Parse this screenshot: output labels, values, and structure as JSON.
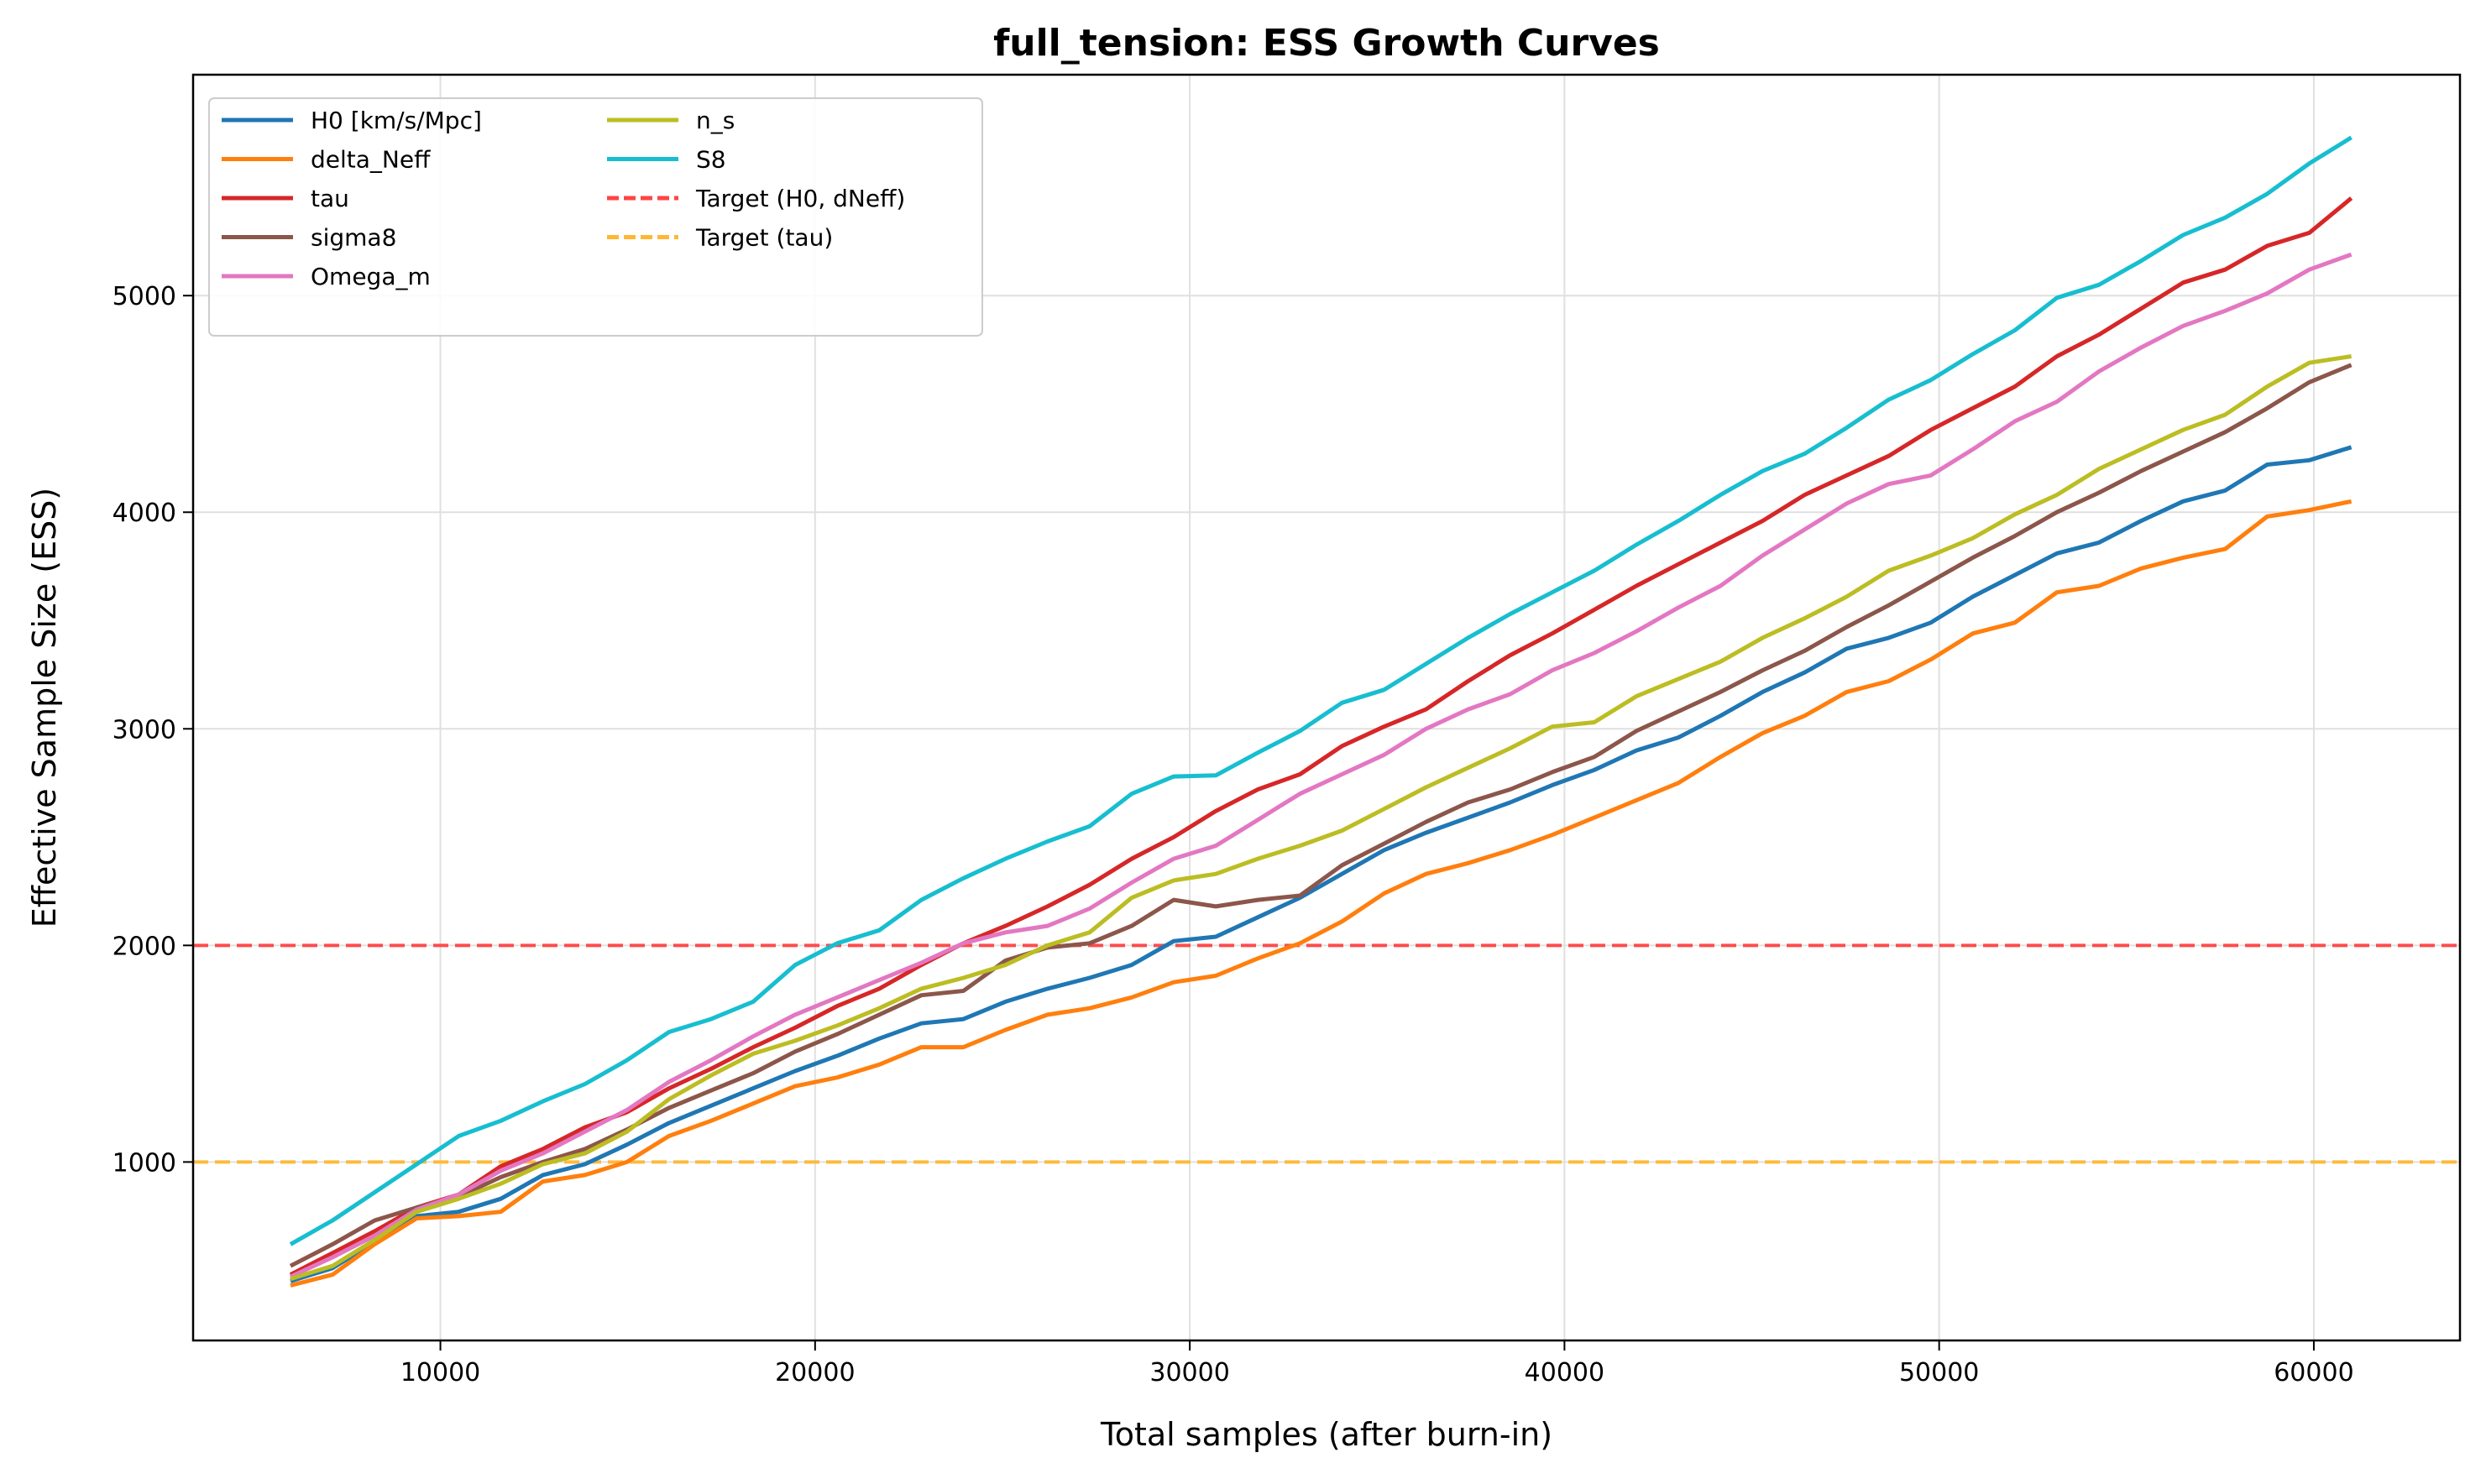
{
  "chart_data": {
    "type": "line",
    "title": "full_tension: ESS Growth Curves",
    "xlabel": "Total samples (after burn-in)",
    "ylabel": "Effective Sample Size (ESS)",
    "xlim": [
      3400,
      63900
    ],
    "ylim": [
      176,
      6020
    ],
    "xticks": [
      10000,
      20000,
      30000,
      40000,
      50000,
      60000
    ],
    "yticks": [
      1000,
      2000,
      3000,
      4000,
      5000
    ],
    "grid": true,
    "legend_placement": "top-left",
    "legend_columns": 2,
    "x": [
      6000,
      7122,
      8245,
      9367,
      10490,
      11612,
      12735,
      13857,
      14980,
      16102,
      17224,
      18347,
      19469,
      20592,
      21714,
      22837,
      23959,
      25082,
      26204,
      27327,
      28449,
      29571,
      30694,
      31816,
      32939,
      34061,
      35184,
      36306,
      37429,
      38551,
      39673,
      40796,
      41918,
      43041,
      44163,
      45286,
      46408,
      47531,
      48653,
      49776,
      50898,
      52020,
      53143,
      54265,
      55388,
      56510,
      57633,
      58755,
      59878,
      61000
    ],
    "series": [
      {
        "name": "H0 [km/s/Mpc]",
        "color": "#1f77b4",
        "values": [
          450,
          510,
          630,
          750,
          770,
          830,
          940,
          990,
          1080,
          1180,
          1260,
          1340,
          1420,
          1490,
          1570,
          1640,
          1660,
          1740,
          1800,
          1850,
          1910,
          2020,
          2040,
          2130,
          2220,
          2330,
          2440,
          2520,
          2590,
          2660,
          2740,
          2810,
          2900,
          2960,
          3060,
          3170,
          3260,
          3370,
          3420,
          3490,
          3610,
          3710,
          3810,
          3860,
          3960,
          4050,
          4100,
          4220,
          4240,
          4300
        ]
      },
      {
        "name": "delta_Neff",
        "color": "#ff7f0e",
        "values": [
          430,
          480,
          620,
          740,
          750,
          770,
          910,
          940,
          1000,
          1120,
          1190,
          1270,
          1350,
          1390,
          1450,
          1530,
          1530,
          1610,
          1680,
          1710,
          1760,
          1830,
          1860,
          1940,
          2010,
          2110,
          2240,
          2330,
          2380,
          2440,
          2510,
          2590,
          2670,
          2750,
          2870,
          2980,
          3060,
          3170,
          3220,
          3320,
          3440,
          3490,
          3630,
          3660,
          3740,
          3790,
          3830,
          3980,
          4010,
          4050
        ]
      },
      {
        "name": "tau",
        "color": "#d62728",
        "values": [
          480,
          580,
          680,
          790,
          850,
          980,
          1060,
          1160,
          1230,
          1340,
          1430,
          1530,
          1620,
          1720,
          1800,
          1910,
          2010,
          2090,
          2180,
          2280,
          2400,
          2500,
          2620,
          2720,
          2790,
          2920,
          3010,
          3090,
          3220,
          3340,
          3440,
          3550,
          3660,
          3760,
          3860,
          3960,
          4080,
          4170,
          4260,
          4380,
          4480,
          4580,
          4720,
          4820,
          4940,
          5060,
          5120,
          5230,
          5290,
          5450
        ]
      },
      {
        "name": "sigma8",
        "color": "#8c564b",
        "values": [
          520,
          620,
          730,
          790,
          840,
          930,
          1000,
          1060,
          1150,
          1250,
          1330,
          1410,
          1510,
          1590,
          1680,
          1770,
          1790,
          1930,
          1990,
          2010,
          2090,
          2210,
          2180,
          2210,
          2230,
          2370,
          2470,
          2570,
          2660,
          2720,
          2800,
          2870,
          2990,
          3080,
          3170,
          3270,
          3360,
          3470,
          3570,
          3680,
          3790,
          3890,
          4000,
          4090,
          4190,
          4280,
          4370,
          4480,
          4600,
          4680
        ]
      },
      {
        "name": "Omega_m",
        "color": "#e377c2",
        "values": [
          470,
          560,
          660,
          780,
          850,
          960,
          1040,
          1140,
          1240,
          1370,
          1470,
          1580,
          1680,
          1760,
          1840,
          1920,
          2010,
          2060,
          2090,
          2170,
          2290,
          2400,
          2460,
          2580,
          2700,
          2790,
          2880,
          3000,
          3090,
          3160,
          3270,
          3350,
          3450,
          3560,
          3660,
          3800,
          3920,
          4040,
          4130,
          4170,
          4290,
          4420,
          4510,
          4650,
          4760,
          4860,
          4930,
          5010,
          5120,
          5190
        ]
      },
      {
        "name": "n_s",
        "color": "#bcbd22",
        "values": [
          460,
          520,
          640,
          770,
          830,
          900,
          990,
          1040,
          1140,
          1290,
          1400,
          1500,
          1560,
          1630,
          1710,
          1800,
          1850,
          1910,
          2000,
          2060,
          2220,
          2300,
          2330,
          2400,
          2460,
          2530,
          2630,
          2730,
          2820,
          2910,
          3010,
          3030,
          3150,
          3230,
          3310,
          3420,
          3510,
          3610,
          3730,
          3800,
          3880,
          3990,
          4080,
          4200,
          4290,
          4380,
          4450,
          4580,
          4690,
          4720
        ]
      },
      {
        "name": "S8",
        "color": "#17becf",
        "values": [
          620,
          730,
          860,
          990,
          1120,
          1190,
          1280,
          1360,
          1470,
          1600,
          1660,
          1740,
          1910,
          2010,
          2070,
          2210,
          2310,
          2400,
          2480,
          2550,
          2700,
          2780,
          2785,
          2890,
          2990,
          3120,
          3180,
          3300,
          3420,
          3530,
          3630,
          3730,
          3850,
          3960,
          4080,
          4190,
          4270,
          4390,
          4520,
          4610,
          4730,
          4840,
          4990,
          5050,
          5160,
          5280,
          5360,
          5470,
          5610,
          5730
        ]
      }
    ],
    "reference_lines": [
      {
        "name": "Target (H0, dNeff)",
        "y": 2000,
        "color": "#ff4444",
        "style": "dashed"
      },
      {
        "name": "Target (tau)",
        "y": 1000,
        "color": "#ffb732",
        "style": "dashed"
      }
    ]
  }
}
